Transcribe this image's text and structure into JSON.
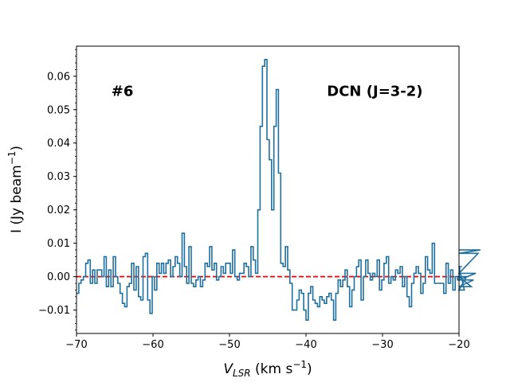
{
  "chart_data": {
    "type": "line",
    "style": "step",
    "xlabel_main": "V",
    "xlabel_sub": "LSR",
    "xlabel_units_pre": " (km s",
    "xlabel_units_sup": "−1",
    "xlabel_units_post": ")",
    "ylabel_pre": "I (Jy beam",
    "ylabel_sup": "−1",
    "ylabel_post": ")",
    "xlim": [
      -70,
      -20
    ],
    "ylim": [
      -0.017,
      0.069
    ],
    "xticks": [
      -70,
      -60,
      -50,
      -40,
      -30,
      -20
    ],
    "xtick_labels": [
      "−70",
      "−60",
      "−50",
      "−40",
      "−30",
      "−20"
    ],
    "yticks": [
      -0.01,
      0.0,
      0.01,
      0.02,
      0.03,
      0.04,
      0.05,
      0.06
    ],
    "ytick_labels": [
      "−0.01",
      "0.00",
      "0.01",
      "0.02",
      "0.03",
      "0.04",
      "0.05",
      "0.06"
    ],
    "annotations": [
      {
        "text": "#6",
        "x": -64.0,
        "y": 0.0555
      },
      {
        "text": "DCN (J=3-2)",
        "x": -31.0,
        "y": 0.0555
      }
    ],
    "baseline": {
      "y": 0.0,
      "color": "#ff0000",
      "style": "dashed"
    },
    "series": [
      {
        "name": "DCN (J=3-2) spectrum",
        "color": "#1f6f9f",
        "x_start": -70.0,
        "x_step": 0.3,
        "values": [
          -0.005,
          -0.002,
          -0.001,
          0.0,
          0.004,
          0.005,
          -0.002,
          0.002,
          -0.002,
          0.002,
          0.002,
          0.0,
          0.006,
          -0.003,
          0.002,
          -0.003,
          0.006,
          0.0,
          -0.002,
          -0.005,
          -0.008,
          -0.009,
          -0.003,
          -0.002,
          0.004,
          -0.004,
          0.003,
          -0.006,
          -0.007,
          0.006,
          0.007,
          -0.007,
          -0.011,
          0.0,
          -0.004,
          0.004,
          0.001,
          0.004,
          0.001,
          0.004,
          0.005,
          0.0,
          0.003,
          0.006,
          0.004,
          0.0,
          0.013,
          0.003,
          -0.002,
          0.009,
          -0.002,
          -0.003,
          -0.001,
          0.0,
          -0.003,
          -0.001,
          0.004,
          0.003,
          0.009,
          0.002,
          0.004,
          -0.001,
          0.0,
          0.003,
          0.001,
          0.004,
          0.004,
          0.001,
          0.008,
          0.0,
          -0.001,
          0.001,
          0.001,
          0.004,
          0.003,
          0.0,
          0.009,
          0.005,
          0.001,
          0.02,
          0.045,
          0.063,
          0.065,
          0.041,
          0.035,
          0.02,
          0.045,
          0.056,
          0.031,
          0.004,
          0.003,
          0.009,
          0.002,
          -0.002,
          -0.01,
          -0.01,
          -0.007,
          -0.004,
          -0.005,
          -0.01,
          -0.013,
          -0.005,
          -0.003,
          -0.007,
          -0.008,
          -0.009,
          -0.006,
          -0.007,
          -0.008,
          -0.006,
          -0.005,
          -0.007,
          -0.013,
          -0.005,
          -0.001,
          -0.003,
          -0.001,
          0.002,
          -0.003,
          -0.009,
          -0.004,
          0.0,
          0.003,
          0.005,
          -0.007,
          0.0,
          0.005,
          0.001,
          -0.001,
          0.001,
          0.0,
          0.005,
          -0.004,
          -0.001,
          0.004,
          0.006,
          -0.002,
          0.0,
          -0.001,
          0.002,
          0.001,
          0.003,
          -0.003,
          0.0,
          -0.006,
          -0.009,
          -0.002,
          0.001,
          0.003,
          0.001,
          -0.005,
          -0.002,
          0.006,
          0.002,
          0.001,
          0.01,
          -0.002,
          -0.002,
          -0.002,
          -0.002,
          -0.005,
          0.004,
          -0.002,
          0.002,
          -0.004,
          0.0,
          -0.001,
          0.003,
          0.003,
          -0.004,
          0.0,
          0.0,
          -0.003,
          -0.001,
          0.001,
          0.007,
          0.008
        ]
      }
    ]
  }
}
